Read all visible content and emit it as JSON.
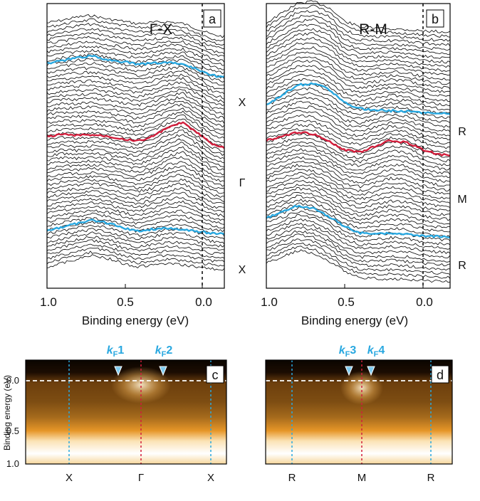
{
  "colors": {
    "cyan": "#29a8e0",
    "red": "#d21e3c",
    "edc": "#000000",
    "frame": "#000000"
  },
  "chart_data": [
    {
      "panel": "a",
      "type": "line",
      "title": "Γ-X",
      "xlabel": "Binding energy (eV)",
      "x_reversed": true,
      "xlim": [
        1.0,
        -0.18
      ],
      "xticks": [
        "1.0",
        "0.5",
        "0.0"
      ],
      "fermi_level": 0.0,
      "n_edc_curves": 60,
      "series": [
        {
          "name": "X",
          "color": "#29a8e0",
          "x": [
            1.0,
            0.9,
            0.8,
            0.7,
            0.6,
            0.5,
            0.4,
            0.3,
            0.2,
            0.1,
            0.0,
            -0.1,
            -0.18
          ],
          "y": [
            0.05,
            0.12,
            0.2,
            0.24,
            0.15,
            0.1,
            0.03,
            0.06,
            0.08,
            0.04,
            -0.1,
            -0.25,
            -0.3
          ]
        },
        {
          "name": "Γ",
          "color": "#d21e3c",
          "x": [
            1.0,
            0.9,
            0.8,
            0.7,
            0.6,
            0.5,
            0.4,
            0.3,
            0.2,
            0.1,
            0.0,
            -0.1,
            -0.18
          ],
          "y": [
            0.0,
            0.06,
            0.03,
            0.05,
            0.02,
            -0.05,
            -0.12,
            0.0,
            0.22,
            0.36,
            0.1,
            -0.2,
            -0.28
          ]
        },
        {
          "name": "X",
          "color": "#29a8e0",
          "x": [
            1.0,
            0.9,
            0.8,
            0.7,
            0.6,
            0.5,
            0.4,
            0.3,
            0.2,
            0.1,
            0.0,
            -0.1,
            -0.18
          ],
          "y": [
            0.0,
            0.1,
            0.2,
            0.28,
            0.22,
            0.1,
            0.0,
            0.05,
            0.08,
            0.05,
            0.0,
            -0.05,
            -0.06
          ]
        }
      ],
      "right_labels": [
        "X",
        "Γ",
        "X"
      ]
    },
    {
      "panel": "b",
      "type": "line",
      "title": "R-M",
      "xlabel": "Binding energy (eV)",
      "x_reversed": true,
      "xlim": [
        1.0,
        -0.18
      ],
      "xticks": [
        "1.0",
        "0.5",
        "0.0"
      ],
      "fermi_level": 0.0,
      "n_edc_curves": 60,
      "series": [
        {
          "name": "R",
          "color": "#29a8e0",
          "x": [
            1.0,
            0.9,
            0.8,
            0.7,
            0.6,
            0.5,
            0.4,
            0.3,
            0.2,
            0.1,
            0.0,
            -0.1,
            -0.18
          ],
          "y": [
            0.05,
            0.3,
            0.55,
            0.6,
            0.45,
            0.1,
            -0.05,
            -0.08,
            -0.1,
            -0.12,
            -0.15,
            -0.17,
            -0.18
          ]
        },
        {
          "name": "M",
          "color": "#d21e3c",
          "x": [
            1.0,
            0.9,
            0.8,
            0.7,
            0.6,
            0.5,
            0.4,
            0.3,
            0.2,
            0.1,
            0.0,
            -0.1,
            -0.18
          ],
          "y": [
            0.05,
            0.15,
            0.25,
            0.22,
            0.05,
            -0.2,
            -0.25,
            -0.1,
            0.05,
            0.0,
            -0.18,
            -0.3,
            -0.33
          ]
        },
        {
          "name": "R",
          "color": "#29a8e0",
          "x": [
            1.0,
            0.9,
            0.8,
            0.7,
            0.6,
            0.5,
            0.4,
            0.3,
            0.2,
            0.1,
            0.0,
            -0.1,
            -0.18
          ],
          "y": [
            0.1,
            0.25,
            0.42,
            0.35,
            0.15,
            -0.1,
            -0.28,
            -0.3,
            -0.3,
            -0.32,
            -0.35,
            -0.37,
            -0.38
          ]
        }
      ],
      "right_labels": [
        "R",
        "M",
        "R"
      ]
    },
    {
      "panel": "c",
      "type": "heatmap",
      "ylabel": "Binding energy (eV)",
      "ylim": [
        1.0,
        -0.15
      ],
      "yticks": [
        "0.0",
        "0.5",
        "1.0"
      ],
      "xticks": [
        "X",
        "Γ",
        "X"
      ],
      "markers": [
        "kF1",
        "kF2"
      ],
      "fermi_level": 0.0
    },
    {
      "panel": "d",
      "type": "heatmap",
      "ylim": [
        1.0,
        -0.15
      ],
      "xticks": [
        "R",
        "M",
        "R"
      ],
      "markers": [
        "kF3",
        "kF4"
      ],
      "fermi_level": 0.0
    }
  ],
  "labels": {
    "panel_a": "a",
    "panel_b": "b",
    "panel_c": "c",
    "panel_d": "d",
    "title_a": "Γ-X",
    "title_b": "R-M",
    "xlabel": "Binding energy (eV)",
    "ylabel_c": "Binding energy (eV)",
    "ticks_x": [
      "1.0",
      "0.5",
      "0.0"
    ],
    "ticks_y": [
      "0.0",
      "0.5",
      "1.0"
    ],
    "right_a": [
      "X",
      "Γ",
      "X"
    ],
    "right_b": [
      "R",
      "M",
      "R"
    ],
    "bottom_c": [
      "X",
      "Γ",
      "X"
    ],
    "bottom_d": [
      "R",
      "M",
      "R"
    ],
    "k_letter": "k",
    "kf_sub": "F",
    "kf1": "1",
    "kf2": "2",
    "kf3": "3",
    "kf4": "4"
  }
}
